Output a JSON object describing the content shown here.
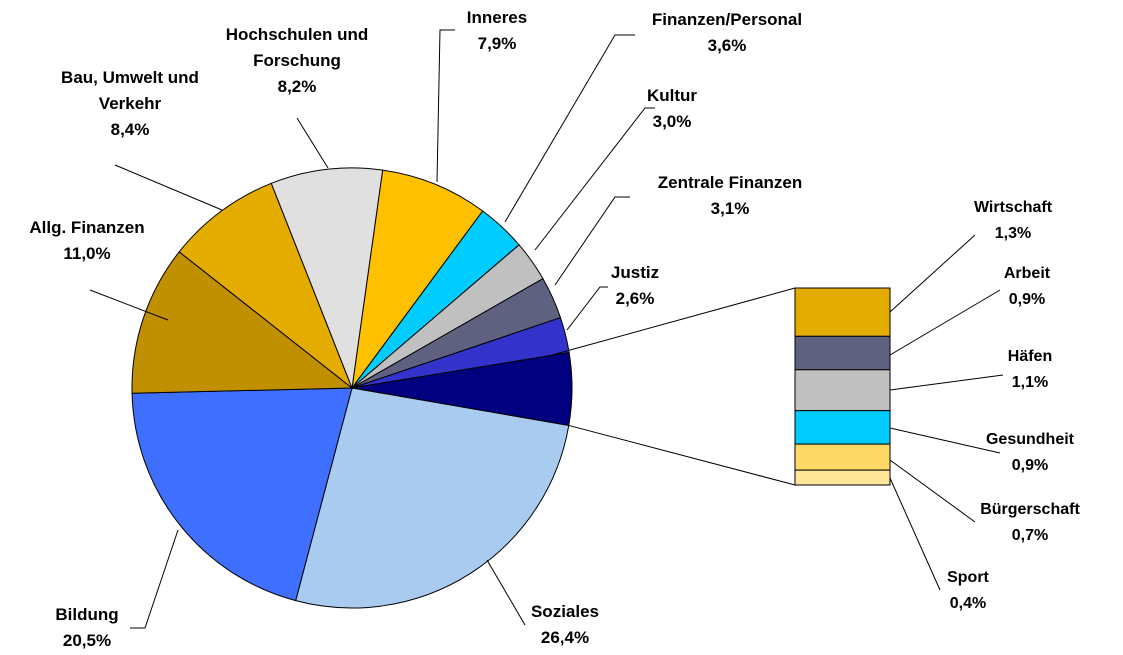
{
  "chart_data": {
    "type": "pie",
    "categories": [
      "Inneres",
      "Finanzen/Personal",
      "Kultur",
      "Zentrale Finanzen",
      "Justiz",
      "Soziales",
      "Bildung",
      "Allg. Finanzen",
      "Bau, Umwelt und Verkehr",
      "Hochschulen und Forschung"
    ],
    "values": [
      7.9,
      3.6,
      3.0,
      3.1,
      2.6,
      26.4,
      20.5,
      11.0,
      8.4,
      8.2
    ],
    "value_labels": [
      "7,9%",
      "3,6%",
      "3,0%",
      "3,1%",
      "2,6%",
      "26,4%",
      "20,5%",
      "11,0%",
      "8,4%",
      "8,2%"
    ],
    "colors": [
      "#FFC000",
      "#00CCFF",
      "#C0C0C0",
      "#5F6180",
      "#3333CC",
      "#A9CBF0",
      "#3F6FFF",
      "#C09000",
      "#E5AC00",
      "#E0E0E0"
    ],
    "bar_of_pie": {
      "categories": [
        "Wirtschaft",
        "Arbeit",
        "Häfen",
        "Gesundheit",
        "Bürgerschaft",
        "Sport"
      ],
      "values": [
        1.3,
        0.9,
        1.1,
        0.9,
        0.7,
        0.4
      ],
      "value_labels": [
        "1,3%",
        "0,9%",
        "1,1%",
        "0,9%",
        "0,7%",
        "0,4%"
      ],
      "colors": [
        "#E5AC00",
        "#5F6180",
        "#C0C0C0",
        "#00CCFF",
        "#FFD966",
        "#FFE699"
      ],
      "pie_color": "#000080"
    }
  }
}
